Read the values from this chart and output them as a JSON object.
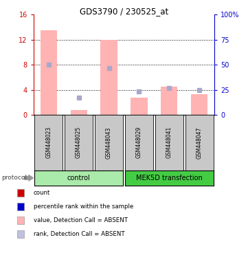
{
  "title": "GDS3790 / 230525_at",
  "samples": [
    "GSM448023",
    "GSM448025",
    "GSM448043",
    "GSM448029",
    "GSM448041",
    "GSM448047"
  ],
  "bar_values": [
    13.5,
    0.8,
    12.0,
    2.8,
    4.5,
    3.3
  ],
  "rank_values": [
    8.0,
    2.8,
    7.5,
    3.7,
    4.3,
    3.9
  ],
  "ylim_left": [
    0,
    16
  ],
  "ylim_right": [
    0,
    100
  ],
  "yticks_left": [
    0,
    4,
    8,
    12,
    16
  ],
  "ytick_labels_left": [
    "0",
    "4",
    "8",
    "12",
    "16"
  ],
  "ytick_labels_right": [
    "0",
    "25",
    "50",
    "75",
    "100%"
  ],
  "bar_color": "#FFB3B3",
  "rank_color": "#A8A8CC",
  "left_axis_color": "#CC0000",
  "right_axis_color": "#0000CC",
  "groups": [
    {
      "label": "control",
      "indices": [
        0,
        1,
        2
      ],
      "color": "#AAEAAA"
    },
    {
      "label": "MEK5D transfection",
      "indices": [
        3,
        4,
        5
      ],
      "color": "#44CC44"
    }
  ],
  "legend_items": [
    {
      "label": "count",
      "color": "#CC0000"
    },
    {
      "label": "percentile rank within the sample",
      "color": "#0000CC"
    },
    {
      "label": "value, Detection Call = ABSENT",
      "color": "#FFB3B3"
    },
    {
      "label": "rank, Detection Call = ABSENT",
      "color": "#C0C0E0"
    }
  ],
  "protocol_label": "protocol",
  "background_color": "#FFFFFF",
  "bar_width": 0.55
}
